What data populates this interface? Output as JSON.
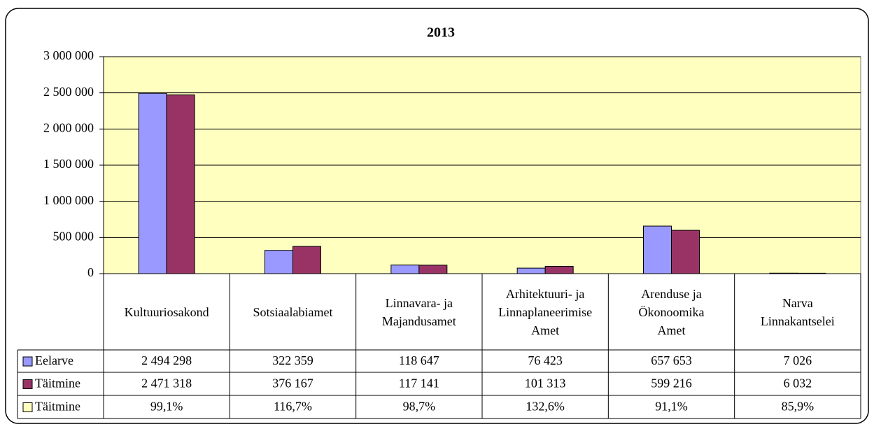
{
  "chart_data": {
    "type": "bar",
    "title": "2013",
    "categories": [
      "Kultuuriosakond",
      "Sotsiaalabiamet",
      "Linnavara- ja\nMajandusamet",
      "Arhitektuuri- ja\nLinnaplaneerimise\nAmet",
      "Arenduse ja\nÖkonoomika\nAmet",
      "Narva\nLinnakantselei"
    ],
    "series": [
      {
        "name": "Eelarve",
        "color": "#9999ff",
        "values": [
          2494298,
          322359,
          118647,
          76423,
          657653,
          7026
        ],
        "value_labels": [
          "2 494 298",
          "322 359",
          "118 647",
          "76 423",
          "657 653",
          "7 026"
        ]
      },
      {
        "name": "Täitmine",
        "color": "#993366",
        "values": [
          2471318,
          376167,
          117141,
          101313,
          599216,
          6032
        ],
        "value_labels": [
          "2 471 318",
          "376 167",
          "117 141",
          "101 313",
          "599 216",
          "6 032"
        ]
      },
      {
        "name": "Täitmine",
        "color": "#ffffc0",
        "table_only": true,
        "values": [
          99.1,
          116.7,
          98.7,
          132.6,
          91.1,
          85.9
        ],
        "value_labels": [
          "99,1%",
          "116,7%",
          "98,7%",
          "132,6%",
          "91,1%",
          "85,9%"
        ]
      }
    ],
    "ylim": [
      0,
      3000000
    ],
    "yticks": [
      0,
      {
        "value": 500000,
        "label": "500 000"
      },
      {
        "value": 1000000,
        "label": "1 000 000"
      },
      {
        "value": 1500000,
        "label": "1 500 000"
      },
      {
        "value": 2000000,
        "label": "2 000 000"
      },
      {
        "value": 2500000,
        "label": "2 500 000"
      },
      {
        "value": 3000000,
        "label": "3 000 000"
      }
    ],
    "grid": true,
    "plot_background": "#ffffc0"
  }
}
